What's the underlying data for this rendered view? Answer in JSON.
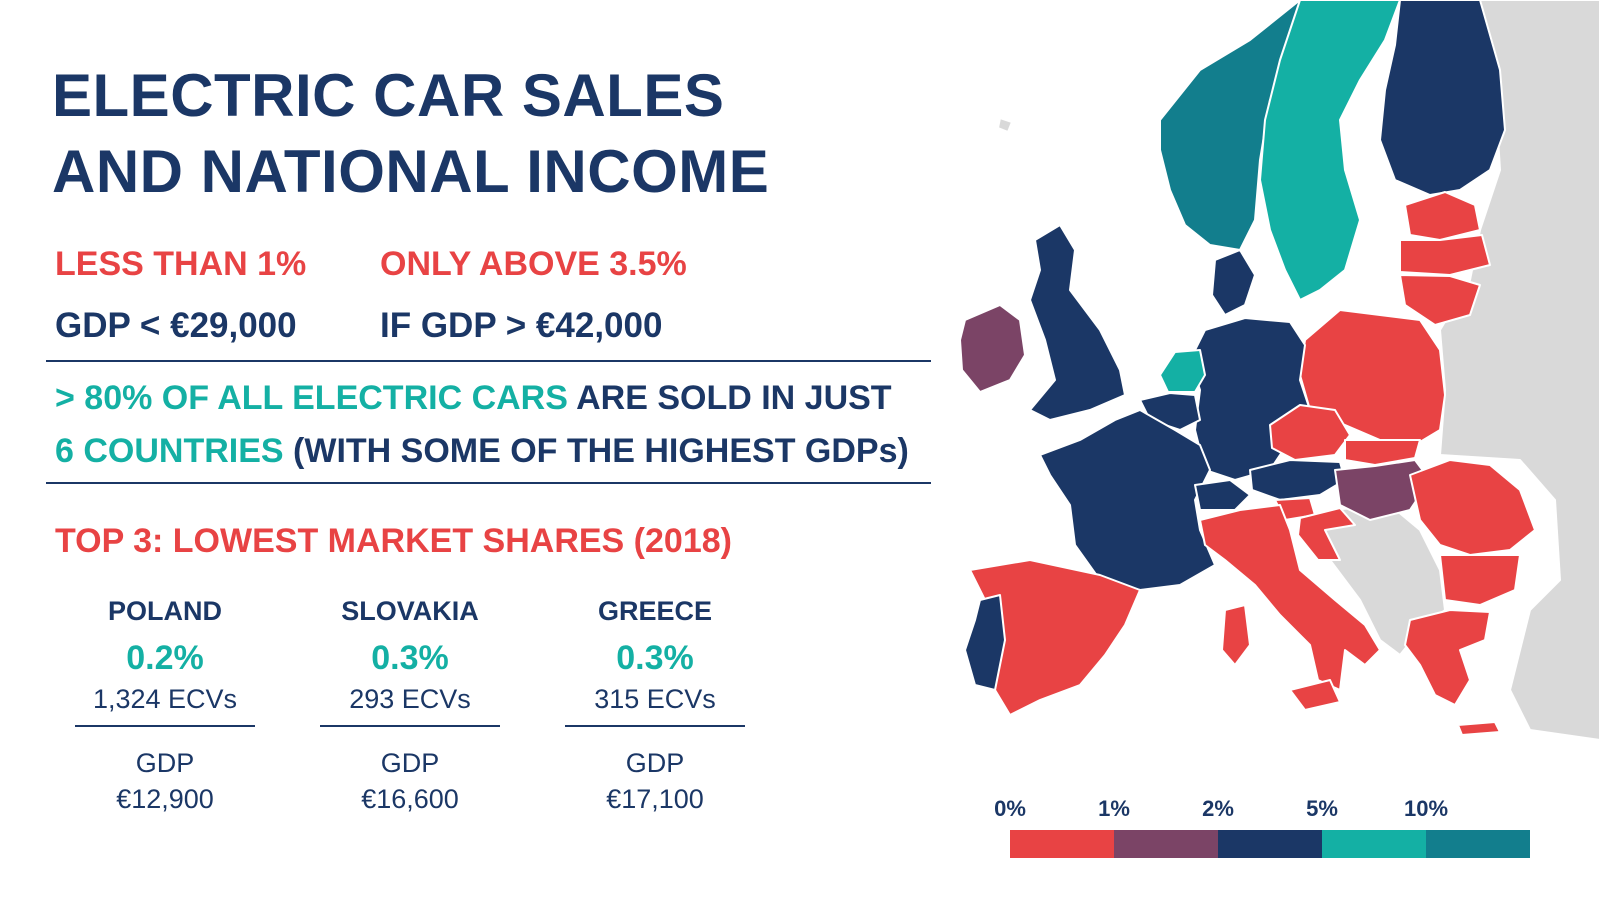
{
  "title": {
    "line1": "ELECTRIC CAR SALES",
    "line2": "AND NATIONAL INCOME"
  },
  "stats": {
    "low": {
      "headline": "LESS THAN 1%",
      "condition": "GDP < €29,000"
    },
    "high": {
      "headline": "ONLY ABOVE 3.5%",
      "condition": "IF GDP > €42,000"
    }
  },
  "claim": {
    "part1": "> 80% OF ALL ELECTRIC CARS",
    "part2": " ARE SOLD IN JUST",
    "part3": "6 COUNTRIES",
    "part4": " (WITH SOME OF THE HIGHEST GDPs)"
  },
  "lowest": {
    "heading": "TOP 3: LOWEST MARKET SHARES (2018)",
    "countries": [
      {
        "name": "POLAND",
        "share": "0.2%",
        "ecvs": "1,324 ECVs",
        "gdp_label": "GDP",
        "gdp": "€12,900"
      },
      {
        "name": "SLOVAKIA",
        "share": "0.3%",
        "ecvs": "293 ECVs",
        "gdp_label": "GDP",
        "gdp": "€16,600"
      },
      {
        "name": "GREECE",
        "share": "0.3%",
        "ecvs": "315 ECVs",
        "gdp_label": "GDP",
        "gdp": "€17,100"
      }
    ]
  },
  "legend": {
    "ticks": [
      "0%",
      "1%",
      "2%",
      "5%",
      "10%"
    ],
    "colors": [
      "#e84344",
      "#7b4466",
      "#1b3766",
      "#14b0a4",
      "#127e8d"
    ]
  },
  "map_colors": {
    "no_data": "#d9d9d9",
    "under_1": "#e84344",
    "1_to_2": "#7b4466",
    "2_to_5": "#1b3766",
    "5_to_10": "#14b0a4",
    "over_10": "#127e8d"
  }
}
